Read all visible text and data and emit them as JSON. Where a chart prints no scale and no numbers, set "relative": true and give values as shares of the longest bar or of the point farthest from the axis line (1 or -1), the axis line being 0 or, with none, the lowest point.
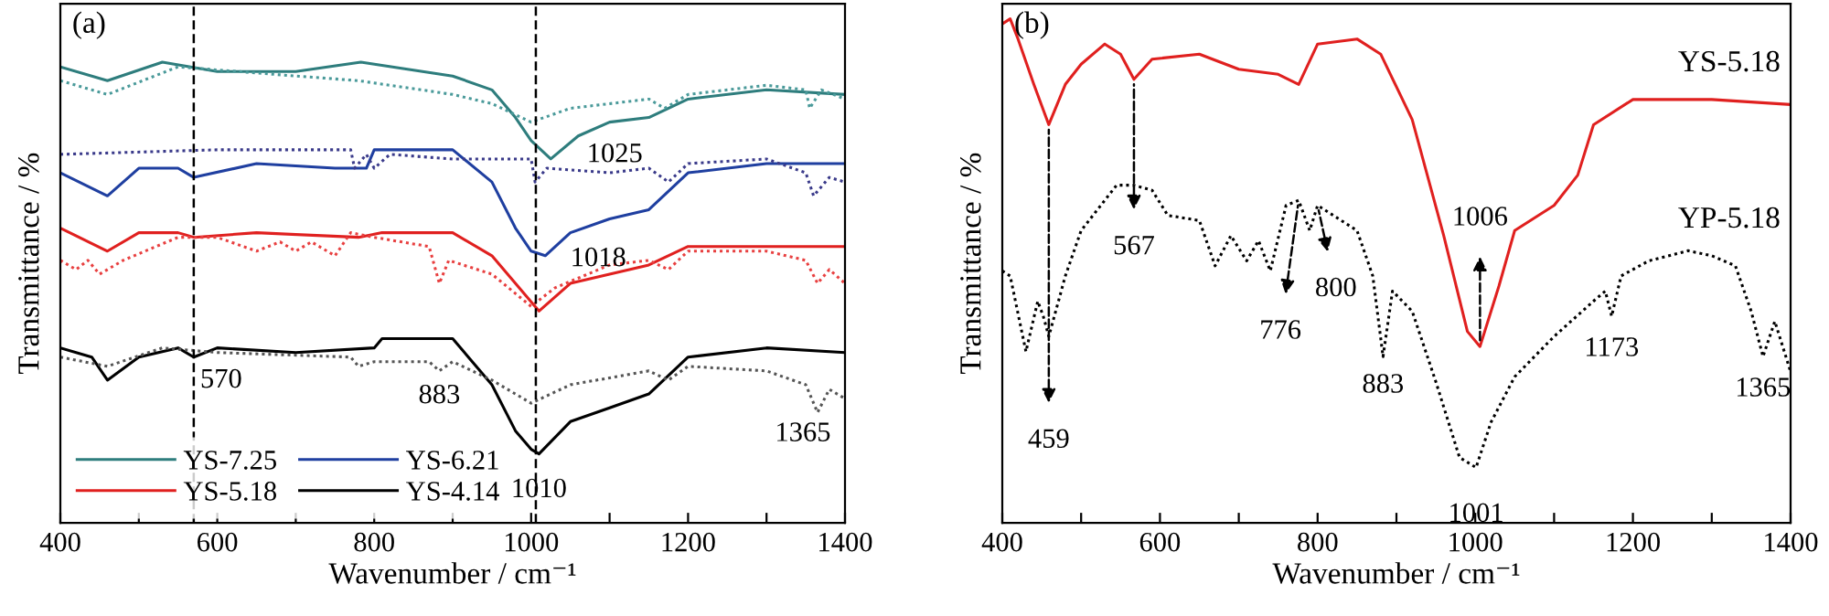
{
  "chart_data": [
    {
      "type": "line",
      "title": "(a)",
      "xlabel": "Wavenumber / cm⁻¹",
      "ylabel": "Transmittance / %",
      "relative": true,
      "xlim": [
        400,
        1400
      ],
      "xticks": [
        400,
        {
          "value": 500,
          "label": null
        },
        600,
        {
          "value": 700,
          "label": null
        },
        800,
        {
          "value": 900,
          "label": null
        },
        1000,
        {
          "value": 1100,
          "label": null
        },
        1200,
        {
          "value": 1300,
          "label": null
        },
        1400
      ],
      "legend": "bottom left",
      "ref_lines": [
        {
          "axis": "x",
          "value": 570,
          "color": "#000000",
          "line_style": "dashed"
        },
        {
          "axis": "x",
          "value": 1006,
          "color": "#000000",
          "line_style": "dashed"
        }
      ],
      "annotations": [
        {
          "text": "570",
          "x": 570,
          "y": 0.36
        },
        {
          "text": "883",
          "x": 883,
          "y": 0.33
        },
        {
          "text": "1025",
          "x": 1025,
          "y": 0.79
        },
        {
          "text": "1018",
          "x": 1018,
          "y": 0.58
        },
        {
          "text": "1010",
          "x": 1010,
          "y": 0.15
        },
        {
          "text": "1365",
          "x": 1365,
          "y": 0.24
        }
      ],
      "series": [
        {
          "name": "YS-7.25",
          "color": "#2e7d7d",
          "line_style": "solid",
          "x": [
            400,
            460,
            530,
            600,
            700,
            783,
            900,
            950,
            980,
            1000,
            1025,
            1060,
            1100,
            1150,
            1200,
            1300,
            1400
          ],
          "values": [
            0.99,
            0.96,
            1.0,
            0.98,
            0.98,
            1.0,
            0.97,
            0.94,
            0.88,
            0.83,
            0.79,
            0.84,
            0.87,
            0.88,
            0.92,
            0.94,
            0.93
          ]
        },
        {
          "name": "YS-5.18",
          "color": "#e0201f",
          "line_style": "solid",
          "x": [
            400,
            460,
            500,
            550,
            570,
            650,
            780,
            810,
            900,
            950,
            1000,
            1010,
            1050,
            1100,
            1150,
            1200,
            1300,
            1400
          ],
          "values": [
            0.64,
            0.59,
            0.63,
            0.63,
            0.62,
            0.63,
            0.62,
            0.63,
            0.63,
            0.58,
            0.48,
            0.46,
            0.52,
            0.54,
            0.56,
            0.6,
            0.6,
            0.6
          ]
        },
        {
          "name": "YS-6.21",
          "color": "#1f3fa0",
          "line_style": "solid",
          "x": [
            400,
            460,
            500,
            550,
            570,
            650,
            750,
            790,
            800,
            900,
            950,
            980,
            1000,
            1018,
            1050,
            1100,
            1150,
            1200,
            1300,
            1400
          ],
          "values": [
            0.76,
            0.71,
            0.77,
            0.77,
            0.75,
            0.78,
            0.77,
            0.77,
            0.81,
            0.81,
            0.74,
            0.64,
            0.59,
            0.58,
            0.63,
            0.66,
            0.68,
            0.76,
            0.78,
            0.78
          ]
        },
        {
          "name": "YS-4.14",
          "color": "#000000",
          "line_style": "solid",
          "x": [
            400,
            440,
            460,
            500,
            550,
            570,
            600,
            700,
            800,
            810,
            900,
            950,
            980,
            1000,
            1010,
            1050,
            1100,
            1150,
            1200,
            1300,
            1400
          ],
          "values": [
            0.38,
            0.36,
            0.31,
            0.36,
            0.38,
            0.36,
            0.38,
            0.37,
            0.38,
            0.4,
            0.4,
            0.3,
            0.2,
            0.16,
            0.15,
            0.22,
            0.25,
            0.28,
            0.36,
            0.38,
            0.37
          ]
        },
        {
          "color": "#4a9a9a",
          "line_style": "dotted",
          "x": [
            400,
            460,
            550,
            700,
            780,
            900,
            950,
            1000,
            1050,
            1150,
            1170,
            1200,
            1300,
            1350,
            1355,
            1370,
            1400
          ],
          "values": [
            0.96,
            0.93,
            0.99,
            0.97,
            0.96,
            0.93,
            0.91,
            0.87,
            0.9,
            0.92,
            0.9,
            0.93,
            0.95,
            0.94,
            0.9,
            0.94,
            0.92
          ]
        },
        {
          "color": "#3a3a8a",
          "line_style": "dotted",
          "x": [
            400,
            600,
            770,
            775,
            790,
            800,
            820,
            900,
            1000,
            1005,
            1020,
            1100,
            1150,
            1175,
            1200,
            1300,
            1350,
            1360,
            1380,
            1400
          ],
          "values": [
            0.8,
            0.81,
            0.81,
            0.77,
            0.8,
            0.77,
            0.8,
            0.79,
            0.79,
            0.74,
            0.77,
            0.76,
            0.77,
            0.74,
            0.78,
            0.79,
            0.76,
            0.71,
            0.75,
            0.74
          ]
        },
        {
          "color": "#e84040",
          "line_style": "dotted",
          "x": [
            400,
            420,
            435,
            450,
            480,
            550,
            600,
            650,
            680,
            700,
            720,
            750,
            770,
            800,
            870,
            883,
            895,
            950,
            1000,
            1030,
            1100,
            1150,
            1175,
            1200,
            1300,
            1350,
            1365,
            1380,
            1400
          ],
          "values": [
            0.57,
            0.55,
            0.57,
            0.54,
            0.57,
            0.62,
            0.62,
            0.59,
            0.61,
            0.59,
            0.61,
            0.58,
            0.63,
            0.62,
            0.6,
            0.52,
            0.57,
            0.54,
            0.47,
            0.51,
            0.56,
            0.57,
            0.55,
            0.59,
            0.59,
            0.57,
            0.52,
            0.55,
            0.52
          ]
        },
        {
          "color": "#555555",
          "line_style": "dotted",
          "x": [
            400,
            460,
            530,
            600,
            770,
            780,
            800,
            870,
            883,
            900,
            950,
            1000,
            1050,
            1150,
            1175,
            1200,
            1300,
            1350,
            1365,
            1380,
            1400
          ],
          "values": [
            0.36,
            0.34,
            0.38,
            0.37,
            0.36,
            0.34,
            0.35,
            0.35,
            0.33,
            0.35,
            0.31,
            0.26,
            0.3,
            0.33,
            0.31,
            0.34,
            0.33,
            0.3,
            0.24,
            0.29,
            0.27
          ]
        }
      ]
    },
    {
      "type": "line",
      "title": "(b)",
      "xlabel": "Wavenumber / cm⁻¹",
      "ylabel": "Transmittance / %",
      "relative": true,
      "xlim": [
        400,
        1400
      ],
      "xticks": [
        400,
        {
          "value": 500,
          "label": null
        },
        600,
        {
          "value": 700,
          "label": null
        },
        800,
        {
          "value": 900,
          "label": null
        },
        1000,
        {
          "value": 1100,
          "label": null
        },
        1200,
        {
          "value": 1300,
          "label": null
        },
        1400
      ],
      "annotations": [
        {
          "text": "459",
          "x": 459,
          "y": 0.79
        },
        {
          "text": "567",
          "x": 567,
          "y": 0.88
        },
        {
          "text": "776",
          "x": 776,
          "y": 0.64
        },
        {
          "text": "800",
          "x": 800,
          "y": 0.63
        },
        {
          "text": "883",
          "x": 883,
          "y": 0.33
        },
        {
          "text": "1006",
          "x": 1006,
          "y": 0.35
        },
        {
          "text": "1001",
          "x": 1001,
          "y": 0.11
        },
        {
          "text": "1173",
          "x": 1173,
          "y": 0.41
        },
        {
          "text": "1365",
          "x": 1365,
          "y": 0.33
        }
      ],
      "series": [
        {
          "name": "YS-5.18",
          "color": "#e0201f",
          "line_style": "solid",
          "x": [
            400,
            410,
            420,
            440,
            459,
            480,
            500,
            530,
            550,
            567,
            590,
            650,
            700,
            750,
            776,
            800,
            850,
            880,
            920,
            960,
            990,
            1006,
            1030,
            1050,
            1100,
            1130,
            1150,
            1200,
            1300,
            1400
          ],
          "values": [
            0.99,
            1.0,
            0.96,
            0.87,
            0.79,
            0.87,
            0.91,
            0.95,
            0.93,
            0.88,
            0.92,
            0.93,
            0.9,
            0.89,
            0.87,
            0.95,
            0.96,
            0.93,
            0.8,
            0.57,
            0.38,
            0.35,
            0.47,
            0.58,
            0.63,
            0.69,
            0.79,
            0.84,
            0.84,
            0.83
          ]
        },
        {
          "name": "YP-5.18",
          "color": "#000000",
          "line_style": "dotted",
          "x": [
            400,
            410,
            430,
            445,
            452,
            459,
            480,
            500,
            530,
            545,
            567,
            590,
            610,
            650,
            670,
            690,
            710,
            725,
            740,
            760,
            776,
            790,
            800,
            820,
            850,
            870,
            883,
            895,
            920,
            950,
            980,
            1001,
            1020,
            1050,
            1100,
            1150,
            1165,
            1173,
            1185,
            1220,
            1270,
            1300,
            1330,
            1350,
            1365,
            1380,
            1400
          ],
          "values": [
            0.5,
            0.49,
            0.34,
            0.44,
            0.41,
            0.37,
            0.49,
            0.58,
            0.64,
            0.67,
            0.67,
            0.66,
            0.61,
            0.6,
            0.51,
            0.57,
            0.52,
            0.56,
            0.5,
            0.63,
            0.64,
            0.58,
            0.63,
            0.61,
            0.58,
            0.49,
            0.33,
            0.46,
            0.42,
            0.28,
            0.13,
            0.11,
            0.2,
            0.29,
            0.37,
            0.44,
            0.46,
            0.41,
            0.49,
            0.52,
            0.54,
            0.53,
            0.51,
            0.42,
            0.33,
            0.4,
            0.3
          ]
        }
      ]
    }
  ]
}
